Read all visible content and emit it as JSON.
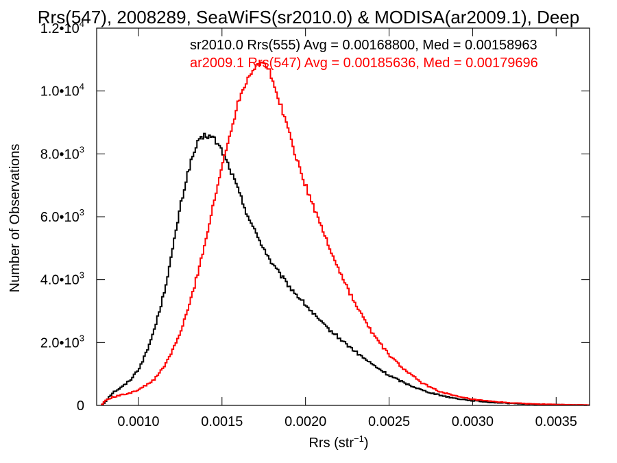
{
  "chart_data": {
    "type": "line",
    "step": true,
    "title": "Rrs(547), 2008289, SeaWiFS(sr2010.0) & MODISA(ar2009.1), Deep",
    "xlabel": "Rrs (str",
    "xlabel_sup": "−1",
    "xlabel_end": ")",
    "ylabel": "Number of Observations",
    "xlim": [
      0.00075,
      0.0037
    ],
    "ylim": [
      0,
      12000
    ],
    "x_ticks": [
      {
        "value": 0.001,
        "label": "0.0010"
      },
      {
        "value": 0.0015,
        "label": "0.0015"
      },
      {
        "value": 0.002,
        "label": "0.0020"
      },
      {
        "value": 0.0025,
        "label": "0.0025"
      },
      {
        "value": 0.003,
        "label": "0.0030"
      },
      {
        "value": 0.0035,
        "label": "0.0035"
      }
    ],
    "y_ticks": [
      {
        "value": 0,
        "base": "0",
        "exp": ""
      },
      {
        "value": 2000,
        "base": "2.0•10",
        "exp": "3"
      },
      {
        "value": 4000,
        "base": "4.0•10",
        "exp": "3"
      },
      {
        "value": 6000,
        "base": "6.0•10",
        "exp": "3"
      },
      {
        "value": 8000,
        "base": "8.0•10",
        "exp": "3"
      },
      {
        "value": 10000,
        "base": "1.0•10",
        "exp": "4"
      },
      {
        "value": 12000,
        "base": "1.2•10",
        "exp": "4"
      }
    ],
    "legend": [
      {
        "text": "sr2010.0 Rrs(555) Avg = 0.00168800, Med = 0.00158963",
        "color": "#000000"
      },
      {
        "text": "ar2009.1 Rrs(547) Avg = 0.00185636, Med = 0.00179696",
        "color": "#ff0000"
      }
    ],
    "series": [
      {
        "color": "#000000",
        "points": [
          [
            0.00078,
            0
          ],
          [
            0.0008,
            100
          ],
          [
            0.00082,
            250
          ],
          [
            0.00085,
            420
          ],
          [
            0.0009,
            580
          ],
          [
            0.00095,
            800
          ],
          [
            0.001,
            1150
          ],
          [
            0.00105,
            1700
          ],
          [
            0.0011,
            2500
          ],
          [
            0.00115,
            3500
          ],
          [
            0.0012,
            4800
          ],
          [
            0.00125,
            6300
          ],
          [
            0.0013,
            7500
          ],
          [
            0.00135,
            8300
          ],
          [
            0.0014,
            8600
          ],
          [
            0.00145,
            8500
          ],
          [
            0.0015,
            8100
          ],
          [
            0.00155,
            7500
          ],
          [
            0.0016,
            6800
          ],
          [
            0.00165,
            6100
          ],
          [
            0.0017,
            5500
          ],
          [
            0.00175,
            5000
          ],
          [
            0.0018,
            4500
          ],
          [
            0.0019,
            3800
          ],
          [
            0.002,
            3200
          ],
          [
            0.0021,
            2600
          ],
          [
            0.0022,
            2150
          ],
          [
            0.0023,
            1700
          ],
          [
            0.0024,
            1300
          ],
          [
            0.0025,
            950
          ],
          [
            0.0026,
            700
          ],
          [
            0.0027,
            480
          ],
          [
            0.0028,
            330
          ],
          [
            0.0029,
            220
          ],
          [
            0.003,
            150
          ],
          [
            0.0031,
            100
          ],
          [
            0.0032,
            70
          ],
          [
            0.0033,
            50
          ],
          [
            0.0034,
            35
          ],
          [
            0.0035,
            25
          ],
          [
            0.0036,
            15
          ],
          [
            0.0037,
            10
          ]
        ]
      },
      {
        "color": "#ff0000",
        "points": [
          [
            0.00078,
            0
          ],
          [
            0.0008,
            150
          ],
          [
            0.00085,
            270
          ],
          [
            0.0009,
            330
          ],
          [
            0.00095,
            400
          ],
          [
            0.001,
            500
          ],
          [
            0.00105,
            650
          ],
          [
            0.0011,
            850
          ],
          [
            0.00115,
            1200
          ],
          [
            0.0012,
            1700
          ],
          [
            0.00125,
            2300
          ],
          [
            0.0013,
            3100
          ],
          [
            0.00135,
            4100
          ],
          [
            0.0014,
            5200
          ],
          [
            0.00145,
            6400
          ],
          [
            0.0015,
            7600
          ],
          [
            0.00155,
            8700
          ],
          [
            0.0016,
            9700
          ],
          [
            0.00165,
            10400
          ],
          [
            0.0017,
            10800
          ],
          [
            0.00174,
            10950
          ],
          [
            0.00178,
            10700
          ],
          [
            0.0018,
            10300
          ],
          [
            0.00185,
            9600
          ],
          [
            0.0019,
            8700
          ],
          [
            0.00195,
            7800
          ],
          [
            0.002,
            7000
          ],
          [
            0.0021,
            5600
          ],
          [
            0.0022,
            4300
          ],
          [
            0.0023,
            3200
          ],
          [
            0.0024,
            2300
          ],
          [
            0.0025,
            1600
          ],
          [
            0.0026,
            1100
          ],
          [
            0.0027,
            700
          ],
          [
            0.0028,
            450
          ],
          [
            0.0029,
            290
          ],
          [
            0.003,
            190
          ],
          [
            0.0031,
            130
          ],
          [
            0.0032,
            90
          ],
          [
            0.0033,
            60
          ],
          [
            0.0034,
            40
          ],
          [
            0.0035,
            28
          ],
          [
            0.0036,
            18
          ],
          [
            0.0037,
            12
          ]
        ]
      }
    ]
  }
}
